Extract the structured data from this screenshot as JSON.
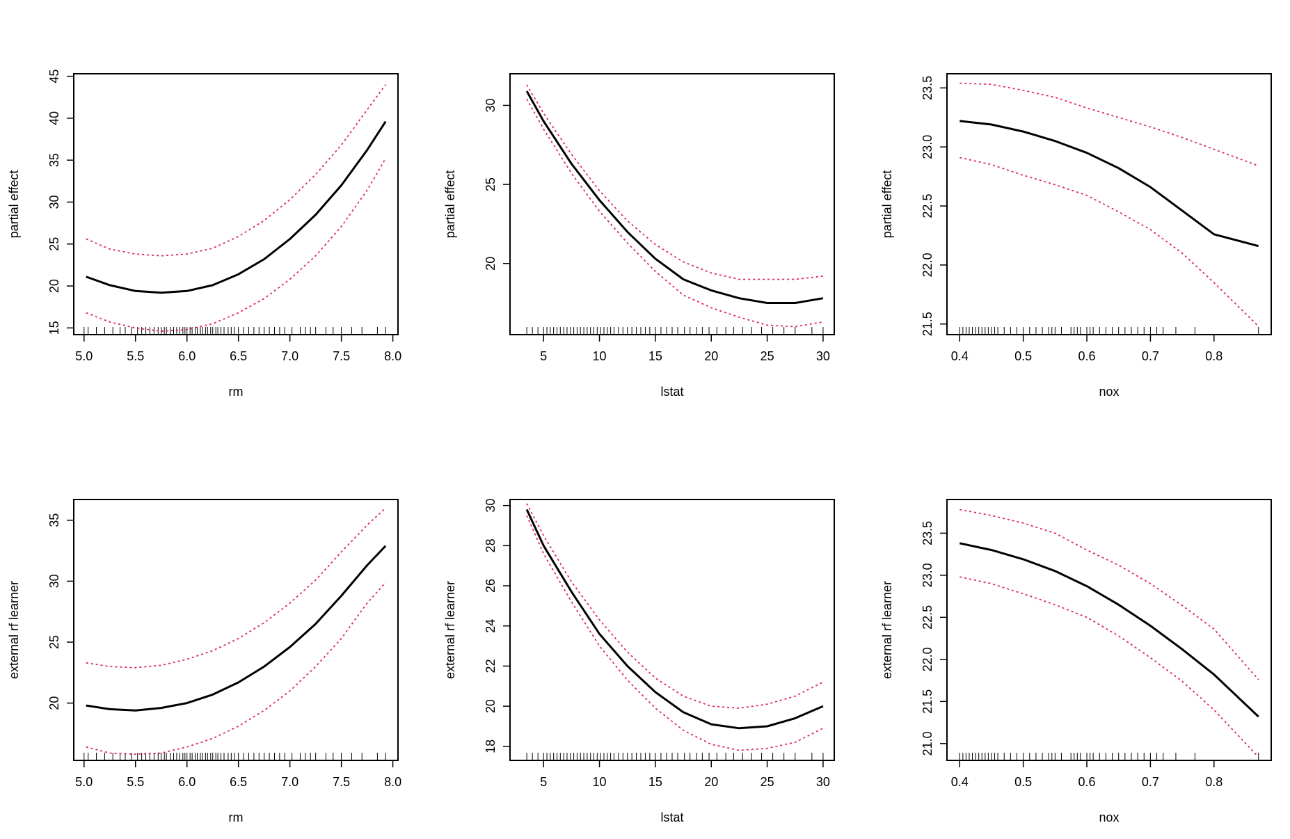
{
  "chart_data": [
    {
      "type": "line",
      "xlabel": "rm",
      "ylabel": "partial effect",
      "xlim": [
        4.9,
        8.05
      ],
      "ylim": [
        14.2,
        45.3
      ],
      "xticks": [
        5.0,
        5.5,
        6.0,
        6.5,
        7.0,
        7.5,
        8.0
      ],
      "xtick_labels": [
        "5.0",
        "5.5",
        "6.0",
        "6.5",
        "7.0",
        "7.5",
        "8.0"
      ],
      "yticks": [
        15,
        20,
        25,
        30,
        35,
        40,
        45
      ],
      "ytick_labels": [
        "15",
        "20",
        "25",
        "30",
        "35",
        "40",
        "45"
      ],
      "x": [
        5.02,
        5.25,
        5.5,
        5.75,
        6.0,
        6.25,
        6.5,
        6.75,
        7.0,
        7.25,
        7.5,
        7.75,
        7.93
      ],
      "series": [
        {
          "role": "estimate",
          "color": "#000000",
          "values": [
            21.1,
            20.1,
            19.4,
            19.2,
            19.4,
            20.1,
            21.4,
            23.2,
            25.6,
            28.5,
            32.0,
            36.2,
            39.6
          ]
        },
        {
          "role": "upper",
          "color": "#e0245e",
          "values": [
            25.6,
            24.4,
            23.8,
            23.6,
            23.8,
            24.5,
            25.9,
            27.8,
            30.3,
            33.3,
            36.8,
            41.0,
            44.0
          ]
        },
        {
          "role": "lower",
          "color": "#e0245e",
          "values": [
            16.8,
            15.7,
            15.0,
            14.6,
            14.8,
            15.5,
            16.8,
            18.5,
            20.8,
            23.6,
            27.1,
            31.4,
            35.2
          ]
        }
      ],
      "rug": [
        5.0,
        5.04,
        5.12,
        5.2,
        5.28,
        5.35,
        5.4,
        5.46,
        5.52,
        5.56,
        5.6,
        5.64,
        5.68,
        5.72,
        5.75,
        5.78,
        5.8,
        5.84,
        5.87,
        5.9,
        5.93,
        5.96,
        5.98,
        6.0,
        6.03,
        6.05,
        6.08,
        6.1,
        6.13,
        6.15,
        6.18,
        6.2,
        6.23,
        6.25,
        6.28,
        6.3,
        6.33,
        6.36,
        6.4,
        6.43,
        6.46,
        6.5,
        6.55,
        6.6,
        6.65,
        6.7,
        6.75,
        6.8,
        6.85,
        6.9,
        6.95,
        7.02,
        7.1,
        7.15,
        7.2,
        7.25,
        7.35,
        7.42,
        7.5,
        7.6,
        7.7,
        7.85,
        7.93
      ]
    },
    {
      "type": "line",
      "xlabel": "lstat",
      "ylabel": "partial effect",
      "xlim": [
        2.0,
        31.0
      ],
      "ylim": [
        15.5,
        32.0
      ],
      "xticks": [
        5,
        10,
        15,
        20,
        25,
        30
      ],
      "xtick_labels": [
        "5",
        "10",
        "15",
        "20",
        "25",
        "30"
      ],
      "yticks": [
        20,
        25,
        30
      ],
      "ytick_labels": [
        "20",
        "25",
        "30"
      ],
      "x": [
        3.5,
        5,
        7.5,
        10,
        12.5,
        15,
        17.5,
        20,
        22.5,
        25,
        27.5,
        30
      ],
      "series": [
        {
          "role": "estimate",
          "color": "#000000",
          "values": [
            30.9,
            29.0,
            26.3,
            24.0,
            22.0,
            20.3,
            19.0,
            18.3,
            17.8,
            17.5,
            17.5,
            17.8
          ]
        },
        {
          "role": "upper",
          "color": "#e0245e",
          "values": [
            31.3,
            29.5,
            26.9,
            24.6,
            22.7,
            21.2,
            20.1,
            19.4,
            19.0,
            19.0,
            19.0,
            19.2
          ]
        },
        {
          "role": "lower",
          "color": "#e0245e",
          "values": [
            30.4,
            28.5,
            25.7,
            23.3,
            21.3,
            19.5,
            18.0,
            17.2,
            16.6,
            16.1,
            16.0,
            16.3
          ]
        }
      ],
      "rug": [
        3.5,
        4.0,
        4.5,
        5.0,
        5.3,
        5.6,
        5.9,
        6.2,
        6.5,
        6.8,
        7.1,
        7.4,
        7.7,
        8.0,
        8.3,
        8.6,
        8.9,
        9.2,
        9.5,
        9.8,
        10.1,
        10.4,
        10.7,
        11.0,
        11.3,
        11.7,
        12.1,
        12.5,
        12.9,
        13.3,
        13.7,
        14.1,
        14.5,
        15.0,
        15.5,
        16.0,
        16.5,
        17.0,
        17.6,
        18.1,
        18.7,
        19.2,
        19.8,
        20.5,
        21.3,
        22.0,
        22.8,
        23.6,
        24.5,
        25.5,
        26.5,
        27.5,
        29.0,
        30.0
      ]
    },
    {
      "type": "line",
      "xlabel": "nox",
      "ylabel": "partial effect",
      "xlim": [
        0.38,
        0.89
      ],
      "ylim": [
        21.41,
        23.62
      ],
      "xticks": [
        0.4,
        0.5,
        0.6,
        0.7,
        0.8
      ],
      "xtick_labels": [
        "0.4",
        "0.5",
        "0.6",
        "0.7",
        "0.8"
      ],
      "yticks": [
        21.5,
        22.0,
        22.5,
        23.0,
        23.5
      ],
      "ytick_labels": [
        "21.5",
        "22.0",
        "22.5",
        "23.0",
        "23.5"
      ],
      "x": [
        0.4,
        0.45,
        0.5,
        0.55,
        0.6,
        0.65,
        0.7,
        0.75,
        0.8,
        0.87
      ],
      "series": [
        {
          "role": "estimate",
          "color": "#000000",
          "values": [
            23.22,
            23.19,
            23.13,
            23.05,
            22.95,
            22.82,
            22.66,
            22.46,
            22.26,
            22.16
          ]
        },
        {
          "role": "upper",
          "color": "#e0245e",
          "values": [
            23.54,
            23.53,
            23.48,
            23.42,
            23.33,
            23.25,
            23.17,
            23.08,
            22.98,
            22.84
          ]
        },
        {
          "role": "lower",
          "color": "#e0245e",
          "values": [
            22.91,
            22.85,
            22.76,
            22.68,
            22.59,
            22.45,
            22.3,
            22.1,
            21.85,
            21.48
          ]
        }
      ],
      "rug": [
        0.4,
        0.405,
        0.41,
        0.415,
        0.42,
        0.425,
        0.43,
        0.435,
        0.44,
        0.445,
        0.45,
        0.455,
        0.46,
        0.47,
        0.48,
        0.49,
        0.5,
        0.51,
        0.52,
        0.53,
        0.54,
        0.545,
        0.55,
        0.56,
        0.575,
        0.58,
        0.585,
        0.59,
        0.6,
        0.605,
        0.61,
        0.62,
        0.63,
        0.64,
        0.65,
        0.66,
        0.67,
        0.68,
        0.69,
        0.7,
        0.71,
        0.72,
        0.74,
        0.77,
        0.87
      ]
    },
    {
      "type": "line",
      "xlabel": "rm",
      "ylabel": "external rf learner",
      "xlim": [
        4.9,
        8.05
      ],
      "ylim": [
        15.3,
        36.7
      ],
      "xticks": [
        5.0,
        5.5,
        6.0,
        6.5,
        7.0,
        7.5,
        8.0
      ],
      "xtick_labels": [
        "5.0",
        "5.5",
        "6.0",
        "6.5",
        "7.0",
        "7.5",
        "8.0"
      ],
      "yticks": [
        20,
        25,
        30,
        35
      ],
      "ytick_labels": [
        "20",
        "25",
        "30",
        "35"
      ],
      "x": [
        5.02,
        5.25,
        5.5,
        5.75,
        6.0,
        6.25,
        6.5,
        6.75,
        7.0,
        7.25,
        7.5,
        7.75,
        7.93
      ],
      "series": [
        {
          "role": "estimate",
          "color": "#000000",
          "values": [
            19.8,
            19.5,
            19.4,
            19.6,
            20.0,
            20.7,
            21.7,
            23.0,
            24.6,
            26.5,
            28.8,
            31.3,
            32.9
          ]
        },
        {
          "role": "upper",
          "color": "#e0245e",
          "values": [
            23.3,
            23.0,
            22.9,
            23.1,
            23.6,
            24.3,
            25.3,
            26.6,
            28.2,
            30.1,
            32.4,
            34.6,
            36.0
          ]
        },
        {
          "role": "lower",
          "color": "#e0245e",
          "values": [
            16.4,
            15.9,
            15.8,
            15.9,
            16.4,
            17.1,
            18.1,
            19.4,
            21.0,
            23.0,
            25.3,
            28.2,
            29.9
          ]
        }
      ],
      "rug": [
        5.0,
        5.04,
        5.12,
        5.2,
        5.28,
        5.35,
        5.4,
        5.46,
        5.52,
        5.56,
        5.6,
        5.64,
        5.68,
        5.72,
        5.75,
        5.78,
        5.8,
        5.84,
        5.87,
        5.9,
        5.93,
        5.96,
        5.98,
        6.0,
        6.03,
        6.05,
        6.08,
        6.1,
        6.13,
        6.15,
        6.18,
        6.2,
        6.23,
        6.25,
        6.28,
        6.3,
        6.33,
        6.36,
        6.4,
        6.43,
        6.46,
        6.5,
        6.55,
        6.6,
        6.65,
        6.7,
        6.75,
        6.8,
        6.85,
        6.9,
        6.95,
        7.02,
        7.1,
        7.15,
        7.2,
        7.25,
        7.35,
        7.42,
        7.5,
        7.6,
        7.7,
        7.85,
        7.93
      ]
    },
    {
      "type": "line",
      "xlabel": "lstat",
      "ylabel": "external rf learner",
      "xlim": [
        2.0,
        31.0
      ],
      "ylim": [
        17.3,
        30.3
      ],
      "xticks": [
        5,
        10,
        15,
        20,
        25,
        30
      ],
      "xtick_labels": [
        "5",
        "10",
        "15",
        "20",
        "25",
        "30"
      ],
      "yticks": [
        18,
        20,
        22,
        24,
        26,
        28,
        30
      ],
      "ytick_labels": [
        "18",
        "20",
        "22",
        "24",
        "26",
        "28",
        "30"
      ],
      "x": [
        3.5,
        5,
        7.5,
        10,
        12.5,
        15,
        17.5,
        20,
        22.5,
        25,
        27.5,
        30
      ],
      "series": [
        {
          "role": "estimate",
          "color": "#000000",
          "values": [
            29.8,
            28.0,
            25.7,
            23.6,
            22.0,
            20.7,
            19.7,
            19.1,
            18.9,
            19.0,
            19.4,
            20.0
          ]
        },
        {
          "role": "upper",
          "color": "#e0245e",
          "values": [
            30.1,
            28.5,
            26.2,
            24.3,
            22.7,
            21.4,
            20.5,
            20.0,
            19.9,
            20.1,
            20.5,
            21.2
          ]
        },
        {
          "role": "lower",
          "color": "#e0245e",
          "values": [
            29.5,
            27.6,
            25.2,
            23.0,
            21.3,
            19.9,
            18.8,
            18.1,
            17.8,
            17.9,
            18.2,
            18.9
          ]
        }
      ],
      "rug": [
        3.5,
        4.0,
        4.5,
        5.0,
        5.3,
        5.6,
        5.9,
        6.2,
        6.5,
        6.8,
        7.1,
        7.4,
        7.7,
        8.0,
        8.3,
        8.6,
        8.9,
        9.2,
        9.5,
        9.8,
        10.1,
        10.4,
        10.7,
        11.0,
        11.3,
        11.7,
        12.1,
        12.5,
        12.9,
        13.3,
        13.7,
        14.1,
        14.5,
        15.0,
        15.5,
        16.0,
        16.5,
        17.0,
        17.6,
        18.1,
        18.7,
        19.2,
        19.8,
        20.5,
        21.3,
        22.0,
        22.8,
        23.6,
        24.5,
        25.5,
        26.5,
        27.5,
        29.0,
        30.0
      ]
    },
    {
      "type": "line",
      "xlabel": "nox",
      "ylabel": "external rf learner",
      "xlim": [
        0.38,
        0.89
      ],
      "ylim": [
        20.8,
        23.9
      ],
      "xticks": [
        0.4,
        0.5,
        0.6,
        0.7,
        0.8
      ],
      "xtick_labels": [
        "0.4",
        "0.5",
        "0.6",
        "0.7",
        "0.8"
      ],
      "yticks": [
        21.0,
        21.5,
        22.0,
        22.5,
        23.0,
        23.5
      ],
      "ytick_labels": [
        "21.0",
        "21.5",
        "22.0",
        "22.5",
        "23.0",
        "23.5"
      ],
      "x": [
        0.4,
        0.45,
        0.5,
        0.55,
        0.6,
        0.65,
        0.7,
        0.75,
        0.8,
        0.87
      ],
      "series": [
        {
          "role": "estimate",
          "color": "#000000",
          "values": [
            23.38,
            23.3,
            23.19,
            23.05,
            22.87,
            22.65,
            22.4,
            22.12,
            21.82,
            21.32
          ]
        },
        {
          "role": "upper",
          "color": "#e0245e",
          "values": [
            23.78,
            23.71,
            23.62,
            23.5,
            23.3,
            23.12,
            22.9,
            22.64,
            22.36,
            21.76
          ]
        },
        {
          "role": "lower",
          "color": "#e0245e",
          "values": [
            22.98,
            22.9,
            22.78,
            22.65,
            22.5,
            22.28,
            22.02,
            21.74,
            21.4,
            20.84
          ]
        }
      ],
      "rug": [
        0.4,
        0.405,
        0.41,
        0.415,
        0.42,
        0.425,
        0.43,
        0.435,
        0.44,
        0.445,
        0.45,
        0.455,
        0.46,
        0.47,
        0.48,
        0.49,
        0.5,
        0.51,
        0.52,
        0.53,
        0.54,
        0.545,
        0.55,
        0.56,
        0.575,
        0.58,
        0.585,
        0.59,
        0.6,
        0.605,
        0.61,
        0.62,
        0.63,
        0.64,
        0.65,
        0.66,
        0.67,
        0.68,
        0.69,
        0.7,
        0.71,
        0.72,
        0.74,
        0.77,
        0.87
      ]
    }
  ]
}
